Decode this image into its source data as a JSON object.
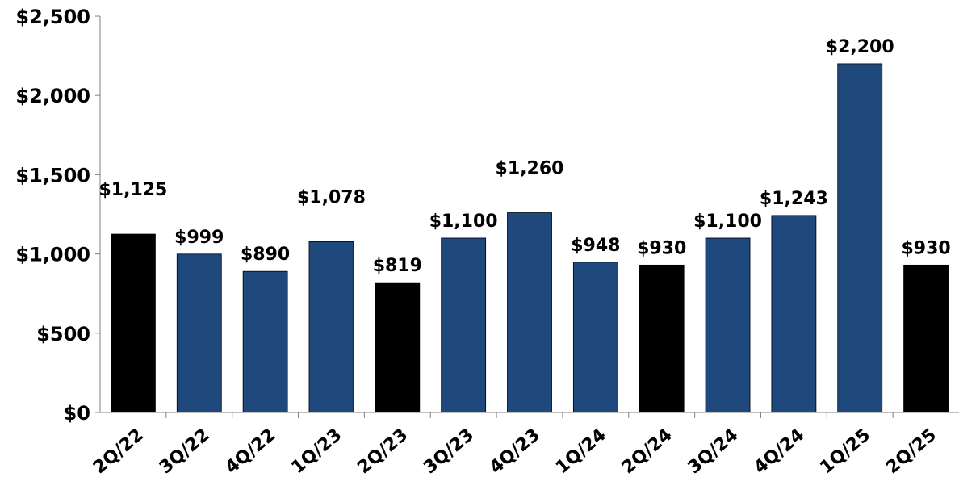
{
  "chart_data": {
    "type": "bar",
    "title": "",
    "xlabel": "",
    "ylabel": "",
    "ylim": [
      0,
      2500
    ],
    "yticks": [
      0,
      500,
      1000,
      1500,
      2000,
      2500
    ],
    "ytick_labels": [
      "$0",
      "$500",
      "$1,000",
      "$1,500",
      "$2,000",
      "$2,500"
    ],
    "grid": false,
    "legend": "none",
    "categories": [
      "2Q/22",
      "3Q/22",
      "4Q/22",
      "1Q/23",
      "2Q/23",
      "3Q/23",
      "4Q/23",
      "1Q/24",
      "2Q/24",
      "3Q/24",
      "4Q/24",
      "1Q/25",
      "2Q/25"
    ],
    "values": [
      1125,
      999,
      890,
      1078,
      819,
      1100,
      1260,
      948,
      930,
      1100,
      1243,
      2200,
      930
    ],
    "value_labels": [
      "$1,125",
      "$999",
      "$890",
      "$1,078",
      "$819",
      "$1,100",
      "$1,260",
      "$948",
      "$930",
      "$1,100",
      "$1,243",
      "$2,200",
      "$930"
    ],
    "bar_colors": [
      "#000000",
      "#1f497d",
      "#1f497d",
      "#1f497d",
      "#000000",
      "#1f497d",
      "#1f497d",
      "#1f497d",
      "#000000",
      "#1f497d",
      "#1f497d",
      "#1f497d",
      "#000000"
    ]
  }
}
